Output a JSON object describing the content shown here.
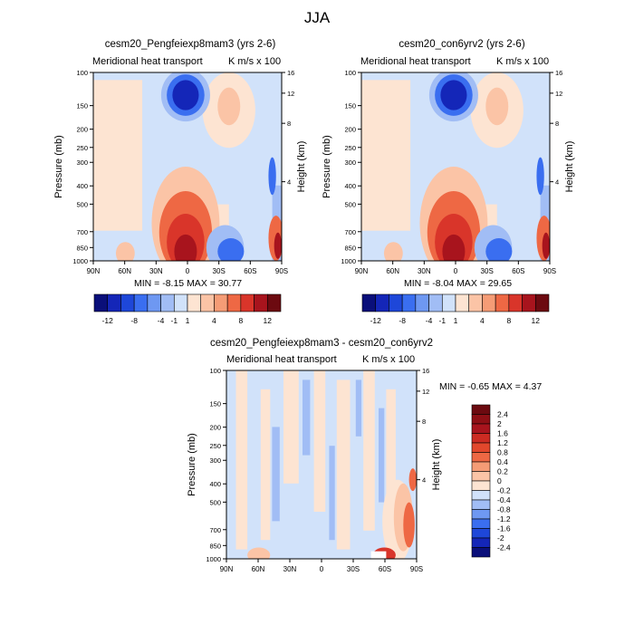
{
  "figure": {
    "title": "JJA"
  },
  "chart_data": [
    {
      "type": "heatmap",
      "title": "cesm20_Pengfeiexp8mam3 (yrs 2-6)",
      "left_label": "Meridional heat transport",
      "right_label": "K m/s x 100",
      "ylabel": "Pressure (mb)",
      "y2label": "Height (km)",
      "xticks": [
        "90N",
        "60N",
        "30N",
        "0",
        "30S",
        "60S",
        "90S"
      ],
      "yticks": [
        "100",
        "150",
        "200",
        "250",
        "300",
        "400",
        "500",
        "700",
        "850",
        "1000"
      ],
      "y2ticks": [
        "16",
        "12",
        "8",
        "4"
      ],
      "minmax_text": "MIN = -8.15  MAX = 30.77",
      "min": -8.15,
      "max": 30.77
    },
    {
      "type": "heatmap",
      "title": "cesm20_con6yrv2 (yrs 2-6)",
      "left_label": "Meridional heat transport",
      "right_label": "K m/s x 100",
      "ylabel": "Pressure (mb)",
      "y2label": "Height (km)",
      "xticks": [
        "90N",
        "60N",
        "30N",
        "0",
        "30S",
        "60S",
        "90S"
      ],
      "yticks": [
        "100",
        "150",
        "200",
        "250",
        "300",
        "400",
        "500",
        "700",
        "850",
        "1000"
      ],
      "y2ticks": [
        "16",
        "12",
        "8",
        "4"
      ],
      "minmax_text": "MIN = -8.04  MAX = 29.65",
      "min": -8.04,
      "max": 29.65
    },
    {
      "type": "heatmap",
      "title": "cesm20_Pengfeiexp8mam3 - cesm20_con6yrv2",
      "left_label": "Meridional heat transport",
      "right_label": "K m/s x 100",
      "ylabel": "Pressure (mb)",
      "y2label": "Height (km)",
      "xticks": [
        "90N",
        "60N",
        "30N",
        "0",
        "30S",
        "60S",
        "90S"
      ],
      "yticks": [
        "100",
        "150",
        "200",
        "250",
        "300",
        "400",
        "500",
        "700",
        "850",
        "1000"
      ],
      "y2ticks": [
        "16",
        "12",
        "8",
        "4"
      ],
      "minmax_text": "MIN = -0.65  MAX =   4.37",
      "min": -0.65,
      "max": 4.37
    }
  ],
  "colorbars": {
    "main": {
      "labels": [
        "-12",
        "-8",
        "-4",
        "-1",
        "1",
        "4",
        "8",
        "12"
      ],
      "colors": [
        "#0a0f7a",
        "#1426b8",
        "#1e47d9",
        "#3a6ef0",
        "#6e98f2",
        "#a1bdf5",
        "#d1e2fa",
        "#fde4d2",
        "#fbc4a6",
        "#f59c76",
        "#ee6844",
        "#d9352a",
        "#a8141d",
        "#6c0a10"
      ]
    },
    "diff": {
      "labels": [
        "2.4",
        "2",
        "1.6",
        "1.2",
        "0.8",
        "0.4",
        "0.2",
        "0",
        "-0.2",
        "-0.4",
        "-0.8",
        "-1.2",
        "-1.6",
        "-2",
        "-2.4"
      ],
      "colors": [
        "#6c0a10",
        "#8e0f15",
        "#a8141d",
        "#cc2b22",
        "#e2472c",
        "#ee6844",
        "#f59c76",
        "#fbc4a6",
        "#fde4d2",
        "#d1e2fa",
        "#a1bdf5",
        "#6e98f2",
        "#3a6ef0",
        "#1e47d9",
        "#1426b8",
        "#0a0f7a"
      ]
    }
  },
  "colors": {
    "neg_deep": "#1426b8",
    "neg_mid": "#3a6ef0",
    "neg_light": "#a1bdf5",
    "neg_pale": "#d1e2fa",
    "pos_pale": "#fde4d2",
    "pos_light": "#fbc4a6",
    "pos_mid": "#ee6844",
    "pos_deep": "#a8141d"
  }
}
